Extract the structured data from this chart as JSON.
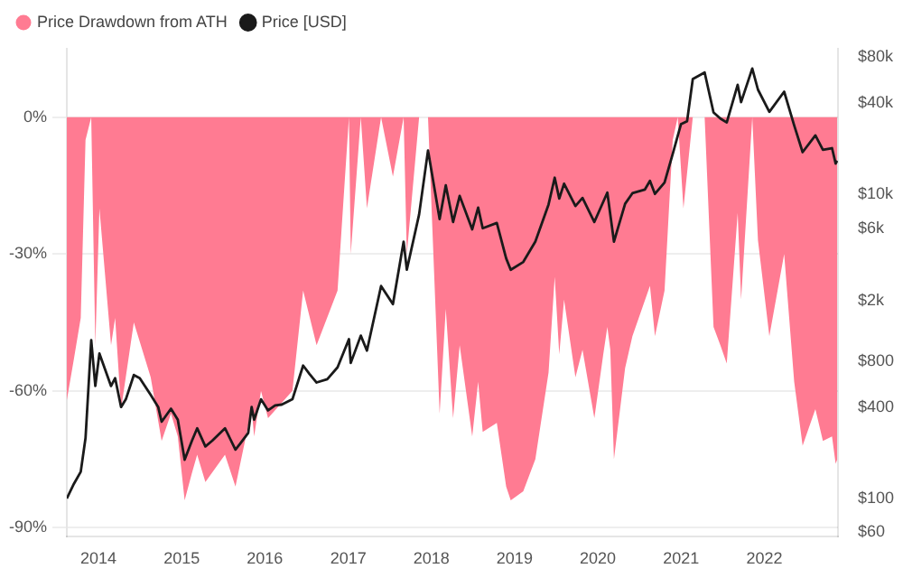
{
  "chart_data": {
    "type": "area",
    "legend": "top left",
    "grid": "y",
    "log": "y2",
    "xlim": [
      "2013-08-15",
      "2022-11-20"
    ],
    "xticks": [
      "2014",
      "2015",
      "2016",
      "2017",
      "2018",
      "2019",
      "2020",
      "2021",
      "2022"
    ],
    "ylim": [
      -92,
      15
    ],
    "yticks": [
      {
        "value": 0,
        "label": "0%"
      },
      {
        "value": -30,
        "label": "-30%"
      },
      {
        "value": -60,
        "label": "-60%"
      },
      {
        "value": -90,
        "label": "-90%"
      }
    ],
    "y2lim": [
      56,
      91000
    ],
    "y2ticks": [
      {
        "value": 80000,
        "label": "$80k"
      },
      {
        "value": 40000,
        "label": "$40k"
      },
      {
        "value": 10000,
        "label": "$10k"
      },
      {
        "value": 6000,
        "label": "$6k"
      },
      {
        "value": 2000,
        "label": "$2k"
      },
      {
        "value": 800,
        "label": "$800"
      },
      {
        "value": 400,
        "label": "$400"
      },
      {
        "value": 100,
        "label": "$100"
      },
      {
        "value": 60,
        "label": "$60"
      }
    ],
    "series": [
      {
        "name": "Price Drawdown from ATH",
        "type": "area",
        "color": "#ff7b92",
        "x": [
          "2013-08-15",
          "2013-09-15",
          "2013-10-15",
          "2013-11-05",
          "2013-11-30",
          "2013-12-18",
          "2014-01-05",
          "2014-02-25",
          "2014-03-15",
          "2014-04-10",
          "2014-06-05",
          "2014-08-18",
          "2014-10-05",
          "2014-11-15",
          "2014-12-15",
          "2015-01-14",
          "2015-02-15",
          "2015-03-10",
          "2015-04-15",
          "2015-07-10",
          "2015-08-25",
          "2015-11-04",
          "2015-11-15",
          "2015-12-15",
          "2016-01-15",
          "2016-05-01",
          "2016-06-17",
          "2016-08-15",
          "2016-11-15",
          "2017-01-04",
          "2017-01-12",
          "2017-02-25",
          "2017-03-24",
          "2017-05-25",
          "2017-07-16",
          "2017-09-01",
          "2017-09-15",
          "2017-11-08",
          "2017-12-17",
          "2018-02-06",
          "2018-03-05",
          "2018-04-06",
          "2018-05-05",
          "2018-06-29",
          "2018-07-25",
          "2018-08-14",
          "2018-10-15",
          "2018-11-25",
          "2018-12-15",
          "2019-02-08",
          "2019-04-02",
          "2019-05-30",
          "2019-06-26",
          "2019-07-16",
          "2019-08-06",
          "2019-09-25",
          "2019-10-26",
          "2019-12-17",
          "2020-01-25",
          "2020-02-12",
          "2020-02-25",
          "2020-03-12",
          "2020-04-30",
          "2020-06-01",
          "2020-08-17",
          "2020-09-08",
          "2020-10-20",
          "2020-11-25",
          "2020-12-17",
          "2021-01-11",
          "2021-02-21",
          "2021-04-14",
          "2021-05-23",
          "2021-06-22",
          "2021-07-20",
          "2021-09-06",
          "2021-09-21",
          "2021-11-09",
          "2021-12-04",
          "2022-01-23",
          "2022-03-29",
          "2022-05-12",
          "2022-06-18",
          "2022-08-13",
          "2022-09-15",
          "2022-10-25",
          "2022-11-10",
          "2022-11-17"
        ],
        "values": [
          -62,
          -53,
          -44,
          -5,
          0,
          -50,
          -20,
          -50,
          -44,
          -64,
          -45,
          -57,
          -71,
          -65,
          -70,
          -84,
          -78,
          -74,
          -80,
          -74,
          -81,
          -64,
          -70,
          -60,
          -66,
          -60,
          -38,
          -50,
          -38,
          0,
          -30,
          0,
          -20,
          0,
          -13,
          0,
          -30,
          0,
          0,
          -65,
          -42,
          -66,
          -50,
          -70,
          -58,
          -69,
          -67,
          -81,
          -84,
          -82,
          -75,
          -56,
          -35,
          -52,
          -40,
          -57,
          -51,
          -66,
          -52,
          -46,
          -51,
          -75,
          -55,
          -48,
          -37,
          -48,
          -38,
          -5,
          0,
          -20,
          0,
          0,
          -46,
          -50,
          -54,
          -21,
          -40,
          0,
          -27,
          -48,
          -30,
          -58,
          -72,
          -64,
          -71,
          -70,
          -76,
          -75
        ]
      },
      {
        "name": "Price [USD]",
        "type": "line",
        "axis": "y2",
        "color": "#1a1a1a",
        "x": [
          "2013-08-15",
          "2013-09-15",
          "2013-10-15",
          "2013-11-05",
          "2013-11-30",
          "2013-12-18",
          "2014-01-05",
          "2014-02-25",
          "2014-03-15",
          "2014-04-10",
          "2014-05-01",
          "2014-06-05",
          "2014-07-01",
          "2014-08-18",
          "2014-09-20",
          "2014-10-05",
          "2014-11-15",
          "2014-12-15",
          "2015-01-14",
          "2015-02-15",
          "2015-03-10",
          "2015-04-15",
          "2015-05-15",
          "2015-07-10",
          "2015-08-25",
          "2015-09-15",
          "2015-10-20",
          "2015-11-04",
          "2015-11-15",
          "2015-12-15",
          "2016-01-15",
          "2016-02-15",
          "2016-03-15",
          "2016-05-01",
          "2016-06-17",
          "2016-07-15",
          "2016-08-15",
          "2016-10-01",
          "2016-11-15",
          "2017-01-04",
          "2017-01-12",
          "2017-02-25",
          "2017-03-24",
          "2017-05-25",
          "2017-07-16",
          "2017-09-01",
          "2017-09-15",
          "2017-11-08",
          "2017-12-17",
          "2018-02-06",
          "2018-03-05",
          "2018-04-06",
          "2018-05-05",
          "2018-06-29",
          "2018-07-25",
          "2018-08-14",
          "2018-10-15",
          "2018-11-25",
          "2018-12-15",
          "2019-02-08",
          "2019-04-02",
          "2019-05-30",
          "2019-06-26",
          "2019-07-16",
          "2019-08-06",
          "2019-09-25",
          "2019-10-26",
          "2019-12-17",
          "2020-02-12",
          "2020-03-12",
          "2020-04-30",
          "2020-06-01",
          "2020-07-26",
          "2020-08-17",
          "2020-09-08",
          "2020-10-20",
          "2020-11-25",
          "2020-12-31",
          "2021-01-27",
          "2021-02-21",
          "2021-04-14",
          "2021-05-23",
          "2021-06-22",
          "2021-07-20",
          "2021-09-06",
          "2021-09-21",
          "2021-11-09",
          "2021-12-04",
          "2022-01-23",
          "2022-03-29",
          "2022-05-12",
          "2022-06-18",
          "2022-08-13",
          "2022-09-15",
          "2022-10-25",
          "2022-11-10",
          "2022-11-17"
        ],
        "values": [
          100,
          125,
          150,
          250,
          1100,
          550,
          900,
          550,
          620,
          400,
          450,
          650,
          620,
          480,
          400,
          320,
          390,
          330,
          180,
          240,
          290,
          220,
          240,
          290,
          210,
          230,
          270,
          400,
          330,
          450,
          380,
          410,
          415,
          450,
          750,
          660,
          580,
          610,
          730,
          1120,
          780,
          1180,
          940,
          2500,
          1900,
          4900,
          3200,
          7400,
          19500,
          6900,
          11500,
          6600,
          9800,
          5900,
          8200,
          6000,
          6500,
          3800,
          3200,
          3600,
          4900,
          8600,
          12900,
          9400,
          11800,
          8400,
          9500,
          6600,
          10300,
          4900,
          8700,
          10200,
          10800,
          12300,
          10100,
          12000,
          18500,
          29000,
          30400,
          57500,
          63500,
          34700,
          31600,
          29800,
          52700,
          40500,
          67500,
          49000,
          35000,
          47500,
          28500,
          19000,
          24500,
          19700,
          20200,
          16000,
          16700
        ]
      }
    ]
  }
}
